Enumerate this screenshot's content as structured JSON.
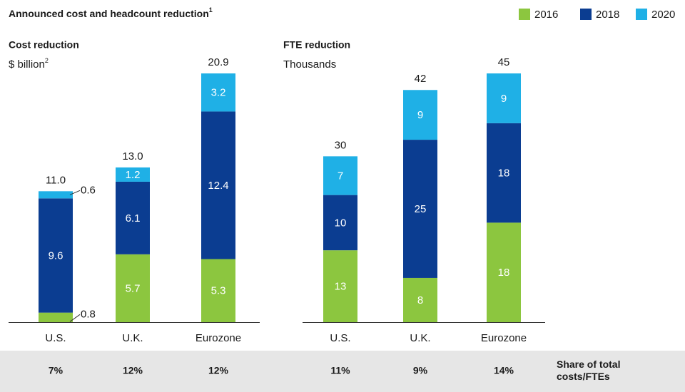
{
  "title": "Announced cost and headcount reduction",
  "title_footnote": "1",
  "share_title": "Share of total costs/FTEs",
  "chart_data": [
    {
      "type": "bar",
      "stacked": true,
      "title": "Cost reduction",
      "subtitle": "$ billion",
      "subtitle_footnote": "2",
      "categories": [
        "U.S.",
        "U.K.",
        "Eurozone"
      ],
      "series": [
        {
          "name": "2016",
          "color": "#8cc63f",
          "values": [
            0.8,
            5.7,
            5.3
          ]
        },
        {
          "name": "2018",
          "color": "#0b3d91",
          "values": [
            9.6,
            6.1,
            12.4
          ]
        },
        {
          "name": "2020",
          "color": "#1fb0e6",
          "values": [
            0.6,
            1.2,
            3.2
          ]
        }
      ],
      "totals": [
        11.0,
        13.0,
        20.9
      ],
      "total_labels": [
        "11.0",
        "13.0",
        "20.9"
      ],
      "share": [
        7,
        12,
        12
      ],
      "share_labels": [
        "7%",
        "12%",
        "12%"
      ]
    },
    {
      "type": "bar",
      "stacked": true,
      "title": "FTE reduction",
      "subtitle": "Thousands",
      "categories": [
        "U.S.",
        "U.K.",
        "Eurozone"
      ],
      "series": [
        {
          "color": "#8cc63f",
          "values": [
            13,
            8,
            18
          ]
        },
        {
          "color": "#0b3d91",
          "values": [
            10,
            25,
            18
          ]
        },
        {
          "color": "#1fb0e6",
          "values": [
            7,
            9,
            9
          ]
        }
      ],
      "totals": [
        30,
        42,
        45
      ],
      "share": [
        11,
        9,
        14
      ],
      "share_labels": [
        "11%",
        "9%",
        "14%"
      ]
    }
  ]
}
